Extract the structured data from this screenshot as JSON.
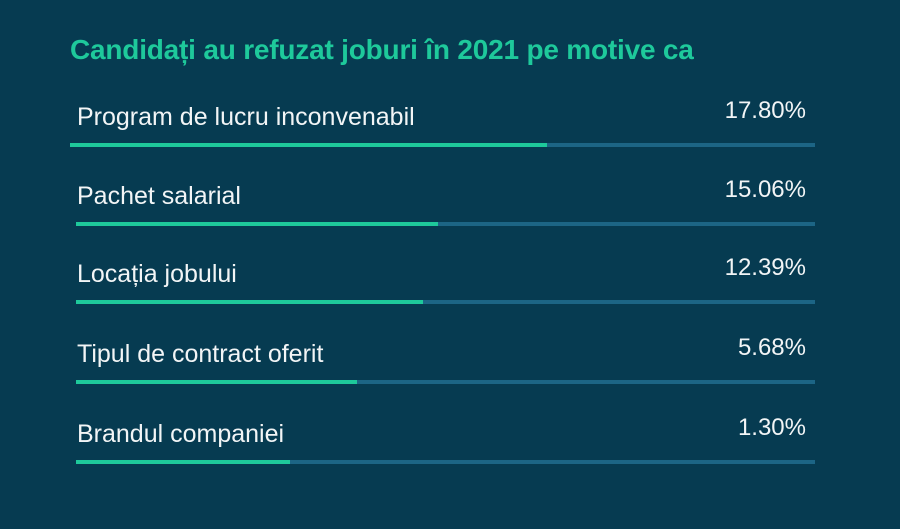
{
  "chart_data": {
    "type": "bar",
    "title": "Candidați au refuzat joburi în 2021 pe motive ca",
    "categories": [
      "Program de lucru inconvenabil",
      "Pachet salarial",
      "Locația jobului",
      "Tipul de contract oferit",
      "Brandul companiei"
    ],
    "values": [
      17.8,
      15.06,
      12.39,
      5.68,
      1.3
    ],
    "value_labels": [
      "17.80%",
      "15.06%",
      "12.39%",
      "5.68%",
      "1.30%"
    ],
    "bar_fill_fractions": [
      0.64,
      0.49,
      0.47,
      0.38,
      0.29
    ],
    "colors": {
      "background": "#063b51",
      "title": "#1ec99b",
      "bar_fill": "#1ec99b",
      "bar_track": "#1c6585",
      "text": "#f2f5f6"
    }
  }
}
